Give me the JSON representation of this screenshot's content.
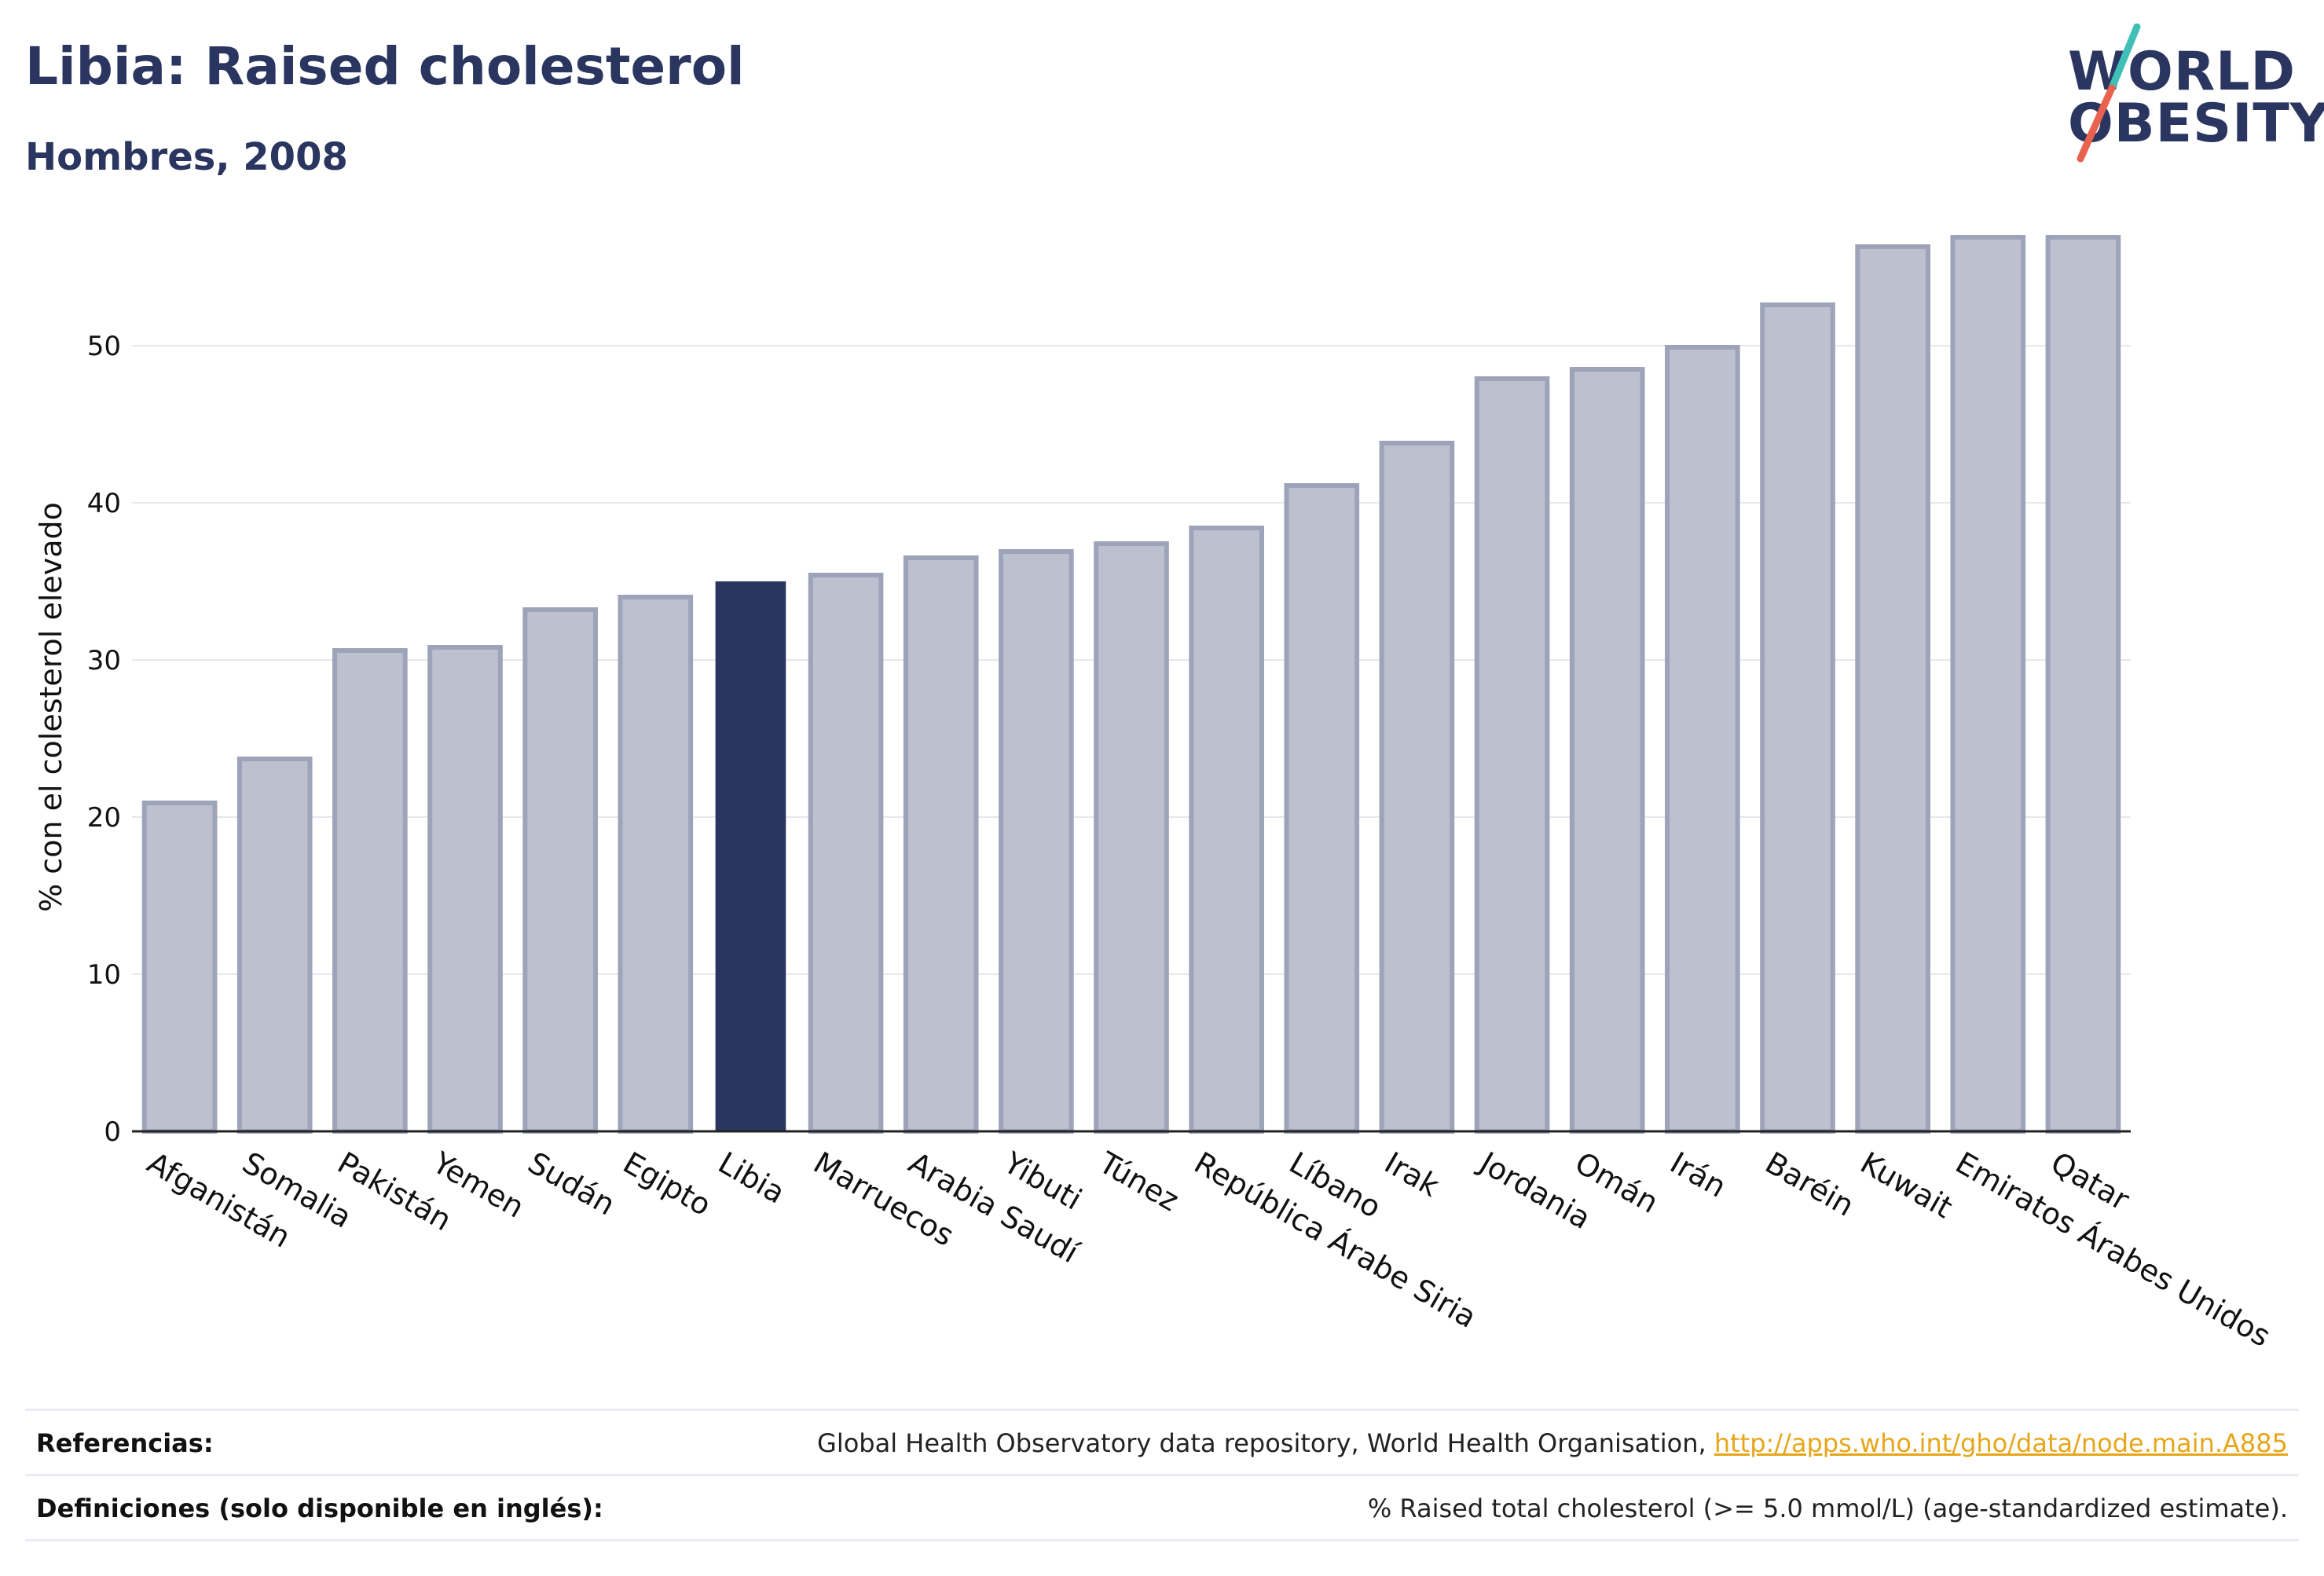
{
  "header": {
    "title": "Libia: Raised cholesterol",
    "subtitle": "Hombres, 2008"
  },
  "logo": {
    "line1": "WORLD",
    "line2": "OBESITY",
    "colors": {
      "text": "#2a3560",
      "slash_top": "#3fbfb8",
      "slash_bottom": "#e8624f"
    }
  },
  "chart_data": {
    "type": "bar",
    "title": "Libia: Raised cholesterol",
    "subtitle": "Hombres, 2008",
    "xlabel": "",
    "ylabel": "% con el colesterol elevado",
    "ylim": [
      0,
      58
    ],
    "yticks": [
      0,
      10,
      20,
      30,
      40,
      50
    ],
    "grid": true,
    "legend": "none",
    "highlight": "Libia",
    "colors": {
      "bar": "#bcc0cf",
      "bar_border": "#9da3b8",
      "highlight": "#2a3560",
      "grid": "#e6e8ee",
      "axis": "#222222"
    },
    "categories": [
      "Afganistán",
      "Somalia",
      "Pakistán",
      "Yemen",
      "Sudán",
      "Egipto",
      "Libia",
      "Marruecos",
      "Arabia Saudí",
      "Yibuti",
      "Túnez",
      "República Árabe Siria",
      "Líbano",
      "Irak",
      "Jordania",
      "Omán",
      "Irán",
      "Baréin",
      "Kuwait",
      "Emiratos Árabes Unidos",
      "Qatar"
    ],
    "values": [
      20.9,
      23.7,
      30.6,
      30.8,
      33.2,
      34.0,
      35.0,
      35.4,
      36.5,
      36.9,
      37.4,
      38.4,
      41.1,
      43.8,
      47.9,
      48.5,
      49.9,
      52.6,
      56.3,
      56.9,
      56.9
    ]
  },
  "footer": {
    "references_label": "Referencias:",
    "references_text": "Global Health Observatory data repository, World Health Organisation, ",
    "references_link": "http://apps.who.int/gho/data/node.main.A885",
    "definitions_label": "Definiciones (solo disponible en inglés):",
    "definitions_text": "% Raised total cholesterol (>= 5.0 mmol/L) (age-standardized estimate)."
  }
}
